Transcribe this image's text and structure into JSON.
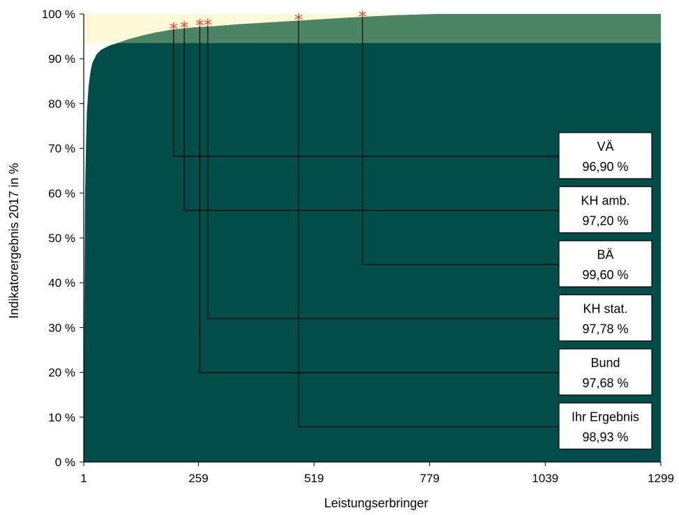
{
  "chart_data": {
    "type": "area",
    "xlabel": "Leistungserbringer",
    "ylabel": "Indikatorergebnis 2017 in %",
    "xlim": [
      1,
      1299
    ],
    "ylim": [
      0,
      100
    ],
    "x_ticks": [
      "1",
      "259",
      "519",
      "779",
      "1039",
      "1299"
    ],
    "y_ticks": [
      "0 %",
      "10 %",
      "20 %",
      "30 %",
      "40 %",
      "50 %",
      "60 %",
      "70 %",
      "80 %",
      "90 %",
      "100 %"
    ],
    "reference_range": [
      93.5,
      100
    ],
    "distribution": {
      "x": [
        1,
        2,
        4,
        6,
        8,
        12,
        16,
        20,
        30,
        40,
        60,
        80,
        100,
        130,
        160,
        200,
        250,
        300,
        350,
        400,
        500,
        600,
        700,
        800,
        1299
      ],
      "y": [
        0,
        30,
        60,
        70,
        78,
        84,
        87,
        89,
        91,
        92,
        93,
        93.6,
        94.3,
        95.1,
        95.8,
        96.5,
        97.0,
        97.3,
        97.7,
        98.0,
        98.6,
        99.2,
        99.7,
        100,
        100
      ]
    },
    "annotations": [
      {
        "label": "VÄ",
        "value_text": "96,90 %",
        "x": 203,
        "y": 96.9
      },
      {
        "label": "KH amb.",
        "value_text": "97,20 %",
        "x": 227,
        "y": 97.2
      },
      {
        "label": "BÄ",
        "value_text": "99,60 %",
        "x": 628,
        "y": 99.6
      },
      {
        "label": "KH stat.",
        "value_text": "97,78 %",
        "x": 280,
        "y": 97.78
      },
      {
        "label": "Bund",
        "value_text": "97,68 %",
        "x": 262,
        "y": 97.68
      },
      {
        "label": "Ihr Ergebnis",
        "value_text": "98,93 %",
        "x": 484,
        "y": 98.93
      }
    ],
    "colors": {
      "area": "#004d4a",
      "reference_band": "#fdf9d8",
      "reference_overlap": "#4c8466",
      "marker": "#e8402a"
    }
  }
}
